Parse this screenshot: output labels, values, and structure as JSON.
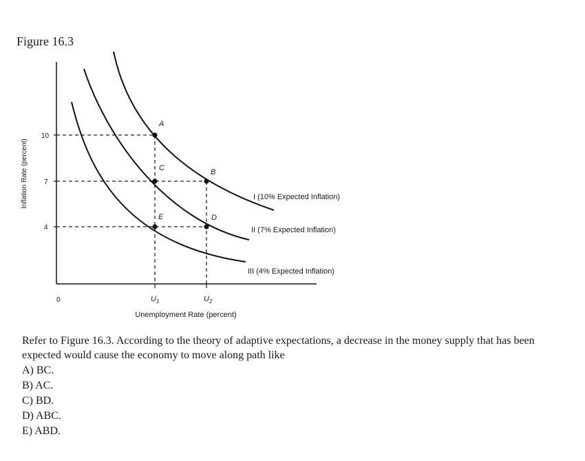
{
  "figure_title": "Figure 16.3",
  "chart_data": {
    "type": "line",
    "title": "",
    "xlabel": "Unemployment Rate (percent)",
    "ylabel": "Inflation Rate (percent)",
    "origin_label": "0",
    "x_ticks": [
      "U1",
      "U2"
    ],
    "y_ticks": [
      "10",
      "7",
      "4"
    ],
    "series": [
      {
        "name": "I (10% Expected Inflation)",
        "color": "#111111"
      },
      {
        "name": "II (7% Expected Inflation)",
        "color": "#111111"
      },
      {
        "name": "III (4% Expected Inflation)",
        "color": "#111111"
      }
    ],
    "points": [
      {
        "label": "A",
        "x": "U1",
        "y": 10,
        "curve": "I"
      },
      {
        "label": "B",
        "x": "U2",
        "y": 7,
        "curve": "I"
      },
      {
        "label": "C",
        "x": "U1",
        "y": 7,
        "curve": "II"
      },
      {
        "label": "D",
        "x": "U2",
        "y": 4,
        "curve": "II"
      },
      {
        "label": "E",
        "x": "U1",
        "y": 4,
        "curve": "III"
      }
    ],
    "grid": false,
    "legend": "labels at curve ends"
  },
  "question": {
    "text": "Refer to Figure 16.3. According to the theory of adaptive expectations, a decrease in the money supply that has been expected would cause the economy to move along path like",
    "options": [
      "A) BC.",
      "B) AC.",
      "C) BD.",
      "D) ABC.",
      "E) ABD."
    ]
  }
}
